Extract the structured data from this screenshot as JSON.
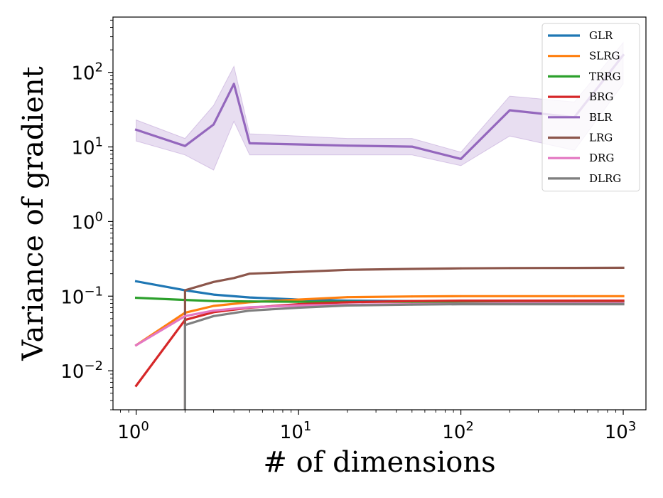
{
  "chart_data": {
    "type": "line",
    "xlabel": "# of dimensions",
    "ylabel": "Variance of gradient",
    "xscale": "log",
    "yscale": "log",
    "xlim": [
      0.72,
      1380
    ],
    "ylim": [
      0.003,
      550
    ],
    "grid": false,
    "legend_position": "top-right",
    "xticks": [
      {
        "base": "10",
        "exp": "0",
        "value": 1
      },
      {
        "base": "10",
        "exp": "1",
        "value": 10
      },
      {
        "base": "10",
        "exp": "2",
        "value": 100
      },
      {
        "base": "10",
        "exp": "3",
        "value": 1000
      }
    ],
    "yticks": [
      {
        "base": "10",
        "exp": "−2",
        "value": 0.01
      },
      {
        "base": "10",
        "exp": "−1",
        "value": 0.1
      },
      {
        "base": "10",
        "exp": "0",
        "value": 1
      },
      {
        "base": "10",
        "exp": "1",
        "value": 10
      },
      {
        "base": "10",
        "exp": "2",
        "value": 100
      }
    ],
    "series": [
      {
        "name": "GLR",
        "color": "#1f77b4",
        "x": [
          1,
          2,
          3,
          5,
          10,
          20,
          50,
          100,
          200,
          500,
          1000
        ],
        "y": [
          0.158,
          0.12,
          0.105,
          0.096,
          0.09,
          0.087,
          0.086,
          0.086,
          0.086,
          0.086,
          0.086
        ]
      },
      {
        "name": "SLRG",
        "color": "#ff7f0e",
        "x": [
          1,
          2,
          3,
          5,
          10,
          20,
          50,
          100,
          200,
          500,
          1000
        ],
        "y": [
          0.022,
          0.06,
          0.074,
          0.083,
          0.09,
          0.097,
          0.099,
          0.1,
          0.1,
          0.1,
          0.1
        ]
      },
      {
        "name": "TRRG",
        "color": "#2ca02c",
        "x": [
          1,
          2,
          3,
          5,
          10,
          20,
          50,
          100,
          200,
          500,
          1000
        ],
        "y": [
          0.095,
          0.089,
          0.086,
          0.085,
          0.084,
          0.084,
          0.084,
          0.084,
          0.084,
          0.084,
          0.084
        ]
      },
      {
        "name": "BRG",
        "color": "#d62728",
        "x": [
          1,
          2,
          3,
          5,
          10,
          20,
          50,
          100,
          200,
          500,
          1000
        ],
        "y": [
          0.0063,
          0.048,
          0.061,
          0.07,
          0.078,
          0.083,
          0.086,
          0.087,
          0.087,
          0.087,
          0.087
        ]
      },
      {
        "name": "BLR",
        "color": "#9467bd",
        "x": [
          1,
          2,
          3,
          4,
          5,
          10,
          20,
          50,
          100,
          200,
          500,
          1000
        ],
        "y": [
          17,
          10.3,
          20,
          70,
          11.2,
          10.8,
          10.4,
          10.1,
          6.9,
          31,
          25,
          170
        ],
        "band_lower": [
          12,
          7.8,
          4.9,
          22,
          7.8,
          7.8,
          7.8,
          7.8,
          5.6,
          14,
          9,
          70
        ],
        "band_upper": [
          23,
          13,
          36,
          120,
          15,
          14,
          13,
          13,
          8.5,
          48,
          40,
          250
        ]
      },
      {
        "name": "LRG",
        "color": "#8c564b",
        "x": [
          2,
          2,
          3,
          4,
          5,
          10,
          20,
          50,
          100,
          200,
          500,
          1000
        ],
        "y": [
          0.0001,
          0.12,
          0.155,
          0.175,
          0.2,
          0.212,
          0.225,
          0.232,
          0.236,
          0.238,
          0.239,
          0.24
        ]
      },
      {
        "name": "DRG",
        "color": "#e377c2",
        "x": [
          1,
          2,
          3,
          5,
          10,
          20,
          50,
          100,
          200,
          500,
          1000
        ],
        "y": [
          0.022,
          0.054,
          0.064,
          0.071,
          0.075,
          0.077,
          0.078,
          0.079,
          0.08,
          0.08,
          0.08
        ]
      },
      {
        "name": "DLRG",
        "color": "#7f7f7f",
        "x": [
          2,
          2,
          3,
          5,
          10,
          20,
          50,
          100,
          200,
          500,
          1000
        ],
        "y": [
          0.0001,
          0.041,
          0.054,
          0.064,
          0.07,
          0.075,
          0.077,
          0.078,
          0.078,
          0.078,
          0.078
        ]
      }
    ]
  }
}
